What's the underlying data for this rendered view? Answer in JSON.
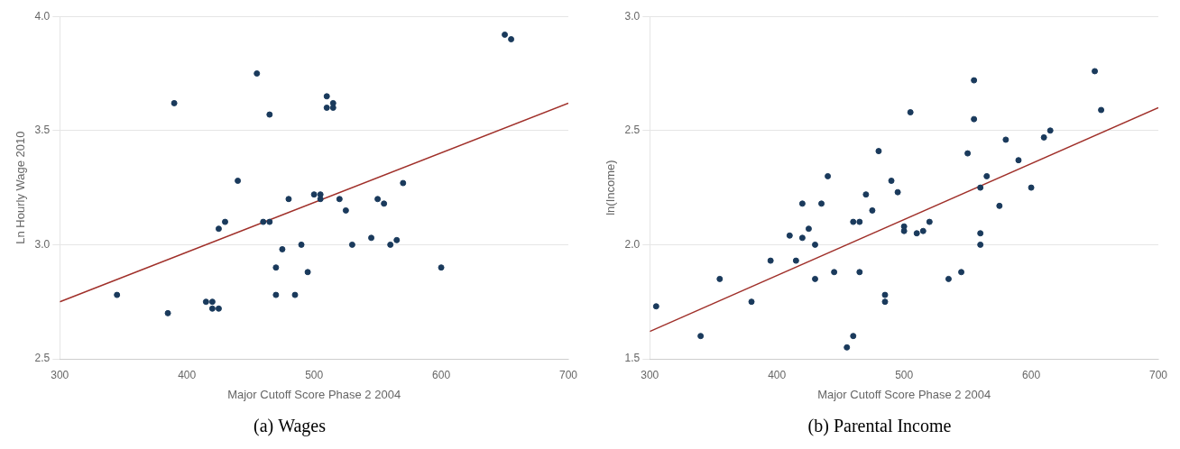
{
  "chart_data": [
    {
      "type": "scatter",
      "title": "(a) Wages",
      "xlabel": "Major Cutoff Score Phase 2 2004",
      "ylabel": "Ln Hourly Wage 2010",
      "xlim": [
        300,
        700
      ],
      "ylim": [
        2.5,
        4.0
      ],
      "xticks": [
        300,
        400,
        500,
        600,
        700
      ],
      "yticks": [
        2.5,
        {
          "value": 3.0,
          "label": "3.0"
        },
        3.5,
        {
          "value": 4.0,
          "label": "4.0"
        }
      ],
      "grid": "y",
      "series": [
        {
          "type": "scatter",
          "color": "#1a3a5c",
          "x": [
            345,
            385,
            390,
            415,
            420,
            420,
            425,
            425,
            430,
            440,
            455,
            460,
            465,
            465,
            470,
            470,
            475,
            480,
            485,
            490,
            495,
            500,
            505,
            505,
            510,
            510,
            515,
            515,
            520,
            525,
            530,
            545,
            550,
            555,
            560,
            565,
            570,
            600,
            650,
            655
          ],
          "values": [
            2.78,
            2.7,
            3.62,
            2.75,
            2.75,
            2.72,
            2.72,
            3.07,
            3.1,
            3.28,
            3.75,
            3.1,
            3.1,
            3.57,
            2.78,
            2.9,
            2.98,
            3.2,
            2.78,
            3.0,
            2.88,
            3.22,
            3.22,
            3.2,
            3.65,
            3.6,
            3.6,
            3.62,
            3.2,
            3.15,
            3.0,
            3.03,
            3.2,
            3.18,
            3.0,
            3.02,
            3.27,
            2.9,
            3.92,
            3.9
          ]
        },
        {
          "type": "line",
          "color": "#a0302a",
          "x": [
            300,
            700
          ],
          "values": [
            2.75,
            3.62
          ]
        }
      ]
    },
    {
      "type": "scatter",
      "title": "(b) Parental Income",
      "xlabel": "Major Cutoff Score Phase 2 2004",
      "ylabel": "ln(Income)",
      "xlim": [
        300,
        700
      ],
      "ylim": [
        1.5,
        3.0
      ],
      "xticks": [
        300,
        400,
        500,
        600,
        700
      ],
      "yticks": [
        1.5,
        {
          "value": 2.0,
          "label": "2.0"
        },
        2.5,
        {
          "value": 3.0,
          "label": "3.0"
        }
      ],
      "grid": "y",
      "series": [
        {
          "type": "scatter",
          "color": "#1a3a5c",
          "x": [
            305,
            340,
            355,
            380,
            395,
            410,
            415,
            420,
            420,
            425,
            430,
            430,
            435,
            440,
            445,
            455,
            460,
            460,
            465,
            465,
            470,
            475,
            480,
            485,
            485,
            490,
            495,
            500,
            500,
            505,
            510,
            515,
            520,
            535,
            545,
            550,
            555,
            555,
            560,
            560,
            560,
            565,
            575,
            580,
            590,
            600,
            610,
            615,
            650,
            655
          ],
          "values": [
            1.73,
            1.6,
            1.85,
            1.75,
            1.93,
            2.04,
            1.93,
            2.18,
            2.03,
            2.07,
            1.85,
            2.0,
            2.18,
            2.3,
            1.88,
            1.55,
            1.6,
            2.1,
            2.1,
            1.88,
            2.22,
            2.15,
            2.41,
            1.75,
            1.78,
            2.28,
            2.23,
            2.08,
            2.06,
            2.58,
            2.05,
            2.06,
            2.1,
            1.85,
            1.88,
            2.4,
            2.55,
            2.72,
            2.05,
            2.0,
            2.25,
            2.3,
            2.17,
            2.46,
            2.37,
            2.25,
            2.47,
            2.5,
            2.76,
            2.59
          ]
        },
        {
          "type": "line",
          "color": "#a0302a",
          "x": [
            300,
            700
          ],
          "values": [
            1.62,
            2.6
          ]
        }
      ]
    }
  ]
}
